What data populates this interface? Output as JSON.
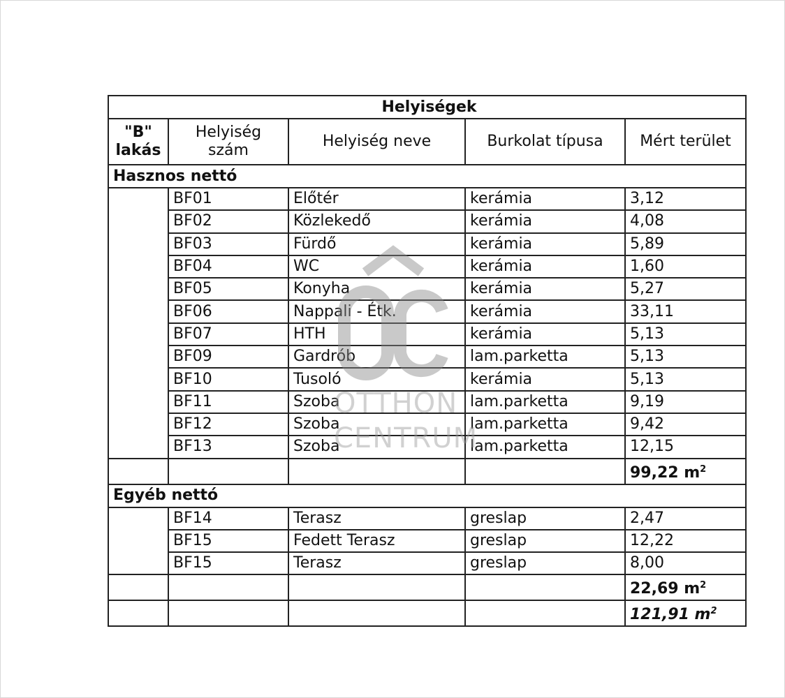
{
  "title": "Helyiségek",
  "headers": {
    "col1": [
      "\"B\"",
      "lakás"
    ],
    "col2": [
      "Helyiség",
      "szám"
    ],
    "col3": "Helyiség neve",
    "col4": "Burkolat típusa",
    "col5": "Mért terület"
  },
  "sections": [
    {
      "label": "Hasznos nettó",
      "rows": [
        {
          "num": "BF01",
          "name": "Előtér",
          "finish": "kerámia",
          "area": "3,12"
        },
        {
          "num": "BF02",
          "name": "Közlekedő",
          "finish": "kerámia",
          "area": "4,08"
        },
        {
          "num": "BF03",
          "name": "Fürdő",
          "finish": "kerámia",
          "area": "5,89"
        },
        {
          "num": "BF04",
          "name": "WC",
          "finish": "kerámia",
          "area": "1,60"
        },
        {
          "num": "BF05",
          "name": "Konyha",
          "finish": "kerámia",
          "area": "5,27"
        },
        {
          "num": "BF06",
          "name": "Nappali - Étk.",
          "finish": "kerámia",
          "area": "33,11"
        },
        {
          "num": "BF07",
          "name": "HTH",
          "finish": "kerámia",
          "area": "5,13"
        },
        {
          "num": "BF09",
          "name": "Gardrób",
          "finish": "lam.parketta",
          "area": "5,13"
        },
        {
          "num": "BF10",
          "name": "Tusoló",
          "finish": "kerámia",
          "area": "5,13"
        },
        {
          "num": "BF11",
          "name": "Szoba",
          "finish": "lam.parketta",
          "area": "9,19"
        },
        {
          "num": "BF12",
          "name": "Szoba",
          "finish": "lam.parketta",
          "area": "9,42"
        },
        {
          "num": "BF13",
          "name": "Szoba",
          "finish": "lam.parketta",
          "area": "12,15"
        }
      ],
      "total": "99,22 m"
    },
    {
      "label": "Egyéb nettó",
      "rows": [
        {
          "num": "BF14",
          "name": "Terasz",
          "finish": "greslap",
          "area": "2,47"
        },
        {
          "num": "BF15",
          "name": "Fedett Terasz",
          "finish": "greslap",
          "area": "12,22"
        },
        {
          "num": "BF15",
          "name": "Terasz",
          "finish": "greslap",
          "area": "8,00"
        }
      ],
      "total": "22,69 m"
    }
  ],
  "grand_total": "121,91 m",
  "unit_exp": "2",
  "watermark": {
    "mark": "ÔC",
    "line1": "OTTHON",
    "line2": "CENTRUM"
  }
}
